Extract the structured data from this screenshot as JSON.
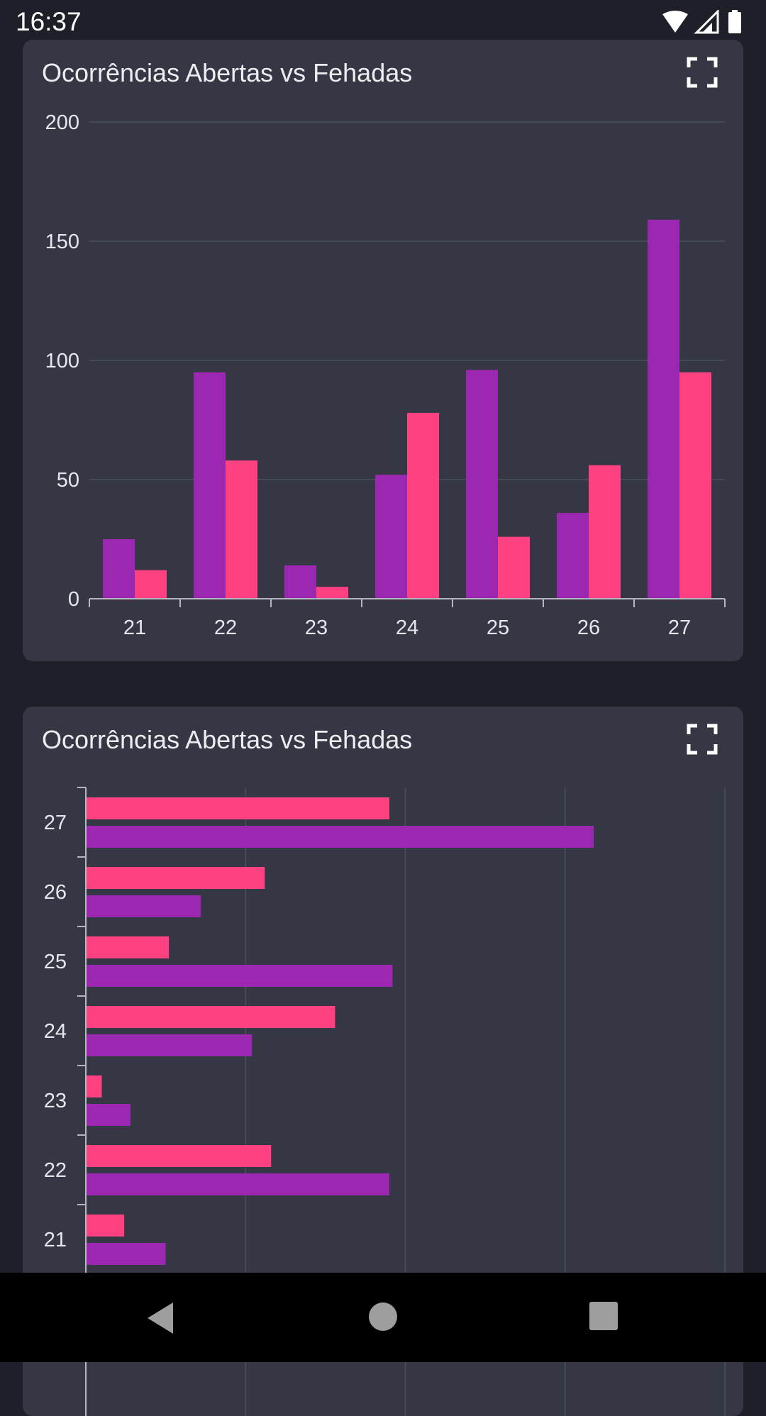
{
  "status_bar": {
    "time": "16:37",
    "icons": [
      "wifi-icon",
      "signal-icon",
      "battery-icon"
    ]
  },
  "colors": {
    "abertas": "#9c27b0",
    "fechadas": "#ff4081",
    "card": "#353744",
    "background": "#1d1f29",
    "grid": "#4b4e5c",
    "axis": "#b5b6bf"
  },
  "cards": [
    {
      "title": "Ocorrências Abertas vs Fehadas",
      "fullscreen_icon": "fullscreen-icon"
    },
    {
      "title": "Ocorrências Abertas vs Fehadas",
      "fullscreen_icon": "fullscreen-icon"
    }
  ],
  "chart_data": [
    {
      "type": "bar",
      "orientation": "vertical",
      "categories": [
        "21",
        "22",
        "23",
        "24",
        "25",
        "26",
        "27"
      ],
      "series": [
        {
          "values": [
            25,
            95,
            14,
            52,
            96,
            36,
            159
          ]
        },
        {
          "values": [
            12,
            58,
            5,
            78,
            26,
            56,
            95
          ]
        }
      ],
      "yticks": [
        "0",
        "50",
        "100",
        "150",
        "200"
      ],
      "ylim": [
        0,
        200
      ],
      "grid": true
    },
    {
      "type": "bar",
      "orientation": "horizontal",
      "categories": [
        "21",
        "22",
        "23",
        "24",
        "25",
        "26",
        "27"
      ],
      "series": [
        {
          "values": [
            25,
            95,
            14,
            52,
            96,
            36,
            159
          ]
        },
        {
          "values": [
            12,
            58,
            5,
            78,
            26,
            56,
            95
          ]
        }
      ],
      "xlim": [
        0,
        200
      ],
      "grid": true
    }
  ],
  "nav_bar": {
    "buttons": [
      "back-icon",
      "home-icon",
      "recents-icon"
    ]
  }
}
